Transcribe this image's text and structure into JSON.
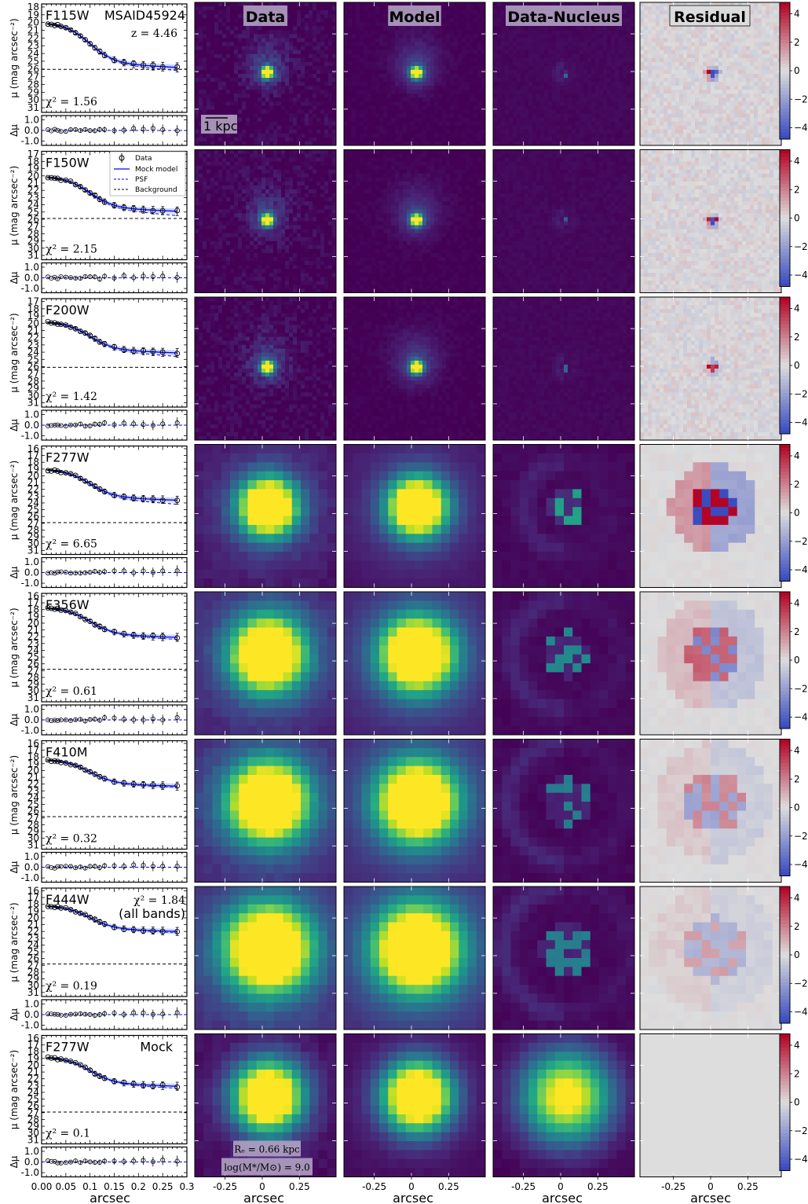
{
  "figure": {
    "column_titles": [
      "Data",
      "Model",
      "Data-Nucleus",
      "Residual"
    ],
    "profile_ylabel": "μ (mag arcsec⁻²)",
    "residual_ylabel": "Δμ",
    "xlabel": "arcsec",
    "source_id": "MSAID45924",
    "redshift": "z = 4.46",
    "all_bands_chi2_line1": "χ² = 1.84",
    "all_bands_chi2_line2": "(all bands)",
    "scalebar_label": "1 kpc",
    "mock_label": "Mock",
    "mock_re": "Rₑ = 0.66 kpc",
    "mock_mass": "log(M*/M⊙) = 9.0",
    "legend": [
      "Data",
      "Mock model",
      "PSF",
      "Background"
    ]
  },
  "chart_data": {
    "type": "line",
    "profile_x_ticks": [
      "0.00",
      "0.05",
      "0.1",
      "0.15",
      "0.2",
      "0.25",
      "0.3"
    ],
    "image_x_ticks": [
      "-0.25",
      "0",
      "0.25"
    ],
    "resid_y_ticks": [
      "1.0",
      "0.0",
      "-1.0"
    ],
    "colorbar_ticks": [
      "4",
      "2",
      "0",
      "−2",
      "−4"
    ],
    "colorbar_range": [
      -4.8,
      4.8
    ],
    "colors": {
      "model": "#0000ff",
      "psf": "#0000cc",
      "bg": "#000000",
      "viridis_low": "#440154",
      "viridis_high": "#fde725"
    },
    "x": [
      0.013,
      0.02,
      0.027,
      0.033,
      0.04,
      0.05,
      0.06,
      0.07,
      0.08,
      0.09,
      0.1,
      0.11,
      0.12,
      0.13,
      0.15,
      0.17,
      0.19,
      0.21,
      0.23,
      0.25,
      0.28
    ],
    "panels": [
      {
        "band": "F115W",
        "chi2": "χ² = 1.56",
        "y_ticks": [
          "18",
          "19",
          "20",
          "21",
          "22",
          "23",
          "24",
          "25",
          "26",
          "27",
          "28",
          "29",
          "30",
          "31"
        ],
        "y_range": [
          17.6,
          31.6
        ],
        "y_first": 20.05,
        "y_last": 25.8,
        "background": 26.05,
        "psf_end": 26.2,
        "bright_scale": 0.6,
        "halo": 0.55,
        "nucleus_strength": 0.35,
        "residual_strength": 1.0
      },
      {
        "band": "F150W",
        "chi2": "χ² = 2.15",
        "y_ticks": [
          "17",
          "18",
          "19",
          "20",
          "21",
          "22",
          "23",
          "24",
          "25",
          "26",
          "27",
          "28",
          "29",
          "30",
          "31"
        ],
        "y_range": [
          16.6,
          31.6
        ],
        "y_first": 20.1,
        "y_last": 24.9,
        "background": 25.9,
        "psf_end": 25.5,
        "bright_scale": 0.6,
        "halo": 0.5,
        "nucleus_strength": 0.3,
        "residual_strength": 1.0
      },
      {
        "band": "F200W",
        "chi2": "χ² = 1.42",
        "y_ticks": [
          "17",
          "18",
          "19",
          "20",
          "21",
          "22",
          "23",
          "24",
          "25",
          "26",
          "27",
          "28",
          "29",
          "30",
          "31"
        ],
        "y_range": [
          16.6,
          31.6
        ],
        "y_first": 19.8,
        "y_last": 24.1,
        "background": 26.1,
        "psf_end": 24.6,
        "bright_scale": 0.65,
        "halo": 0.5,
        "nucleus_strength": 0.3,
        "residual_strength": 0.9
      },
      {
        "band": "F277W",
        "chi2": "χ² = 6.65",
        "y_ticks": [
          "16",
          "17",
          "18",
          "19",
          "20",
          "21",
          "22",
          "23",
          "24",
          "25",
          "26",
          "27",
          "28",
          "29",
          "30",
          "31"
        ],
        "y_range": [
          15.6,
          31.6
        ],
        "y_first": 19.05,
        "y_last": 23.6,
        "background": 26.9,
        "psf_end": 24.2,
        "bright_scale": 1.0,
        "halo": 0.6,
        "nucleus_strength": 0.55,
        "residual_strength": 1.3
      },
      {
        "band": "F356W",
        "chi2": "χ² = 0.61",
        "y_ticks": [
          "16",
          "17",
          "18",
          "19",
          "20",
          "21",
          "22",
          "23",
          "24",
          "25",
          "26",
          "27",
          "28",
          "29",
          "30",
          "31"
        ],
        "y_range": [
          15.6,
          31.6
        ],
        "y_first": 17.7,
        "y_last": 22.1,
        "background": 26.8,
        "psf_end": 22.4,
        "bright_scale": 1.25,
        "halo": 0.75,
        "nucleus_strength": 0.45,
        "residual_strength": 0.6
      },
      {
        "band": "F410M",
        "chi2": "χ² = 0.32",
        "y_ticks": [
          "16",
          "17",
          "18",
          "19",
          "20",
          "21",
          "22",
          "23",
          "24",
          "25",
          "26",
          "27",
          "28",
          "29",
          "30",
          "31"
        ],
        "y_range": [
          15.6,
          31.6
        ],
        "y_first": 18.4,
        "y_last": 22.3,
        "background": 26.8,
        "psf_end": 22.5,
        "bright_scale": 1.35,
        "halo": 0.8,
        "nucleus_strength": 0.4,
        "residual_strength": 0.4
      },
      {
        "band": "F444W",
        "chi2": "χ² = 0.19",
        "y_ticks": [
          "16",
          "17",
          "18",
          "19",
          "20",
          "21",
          "22",
          "23",
          "24",
          "25",
          "26",
          "27",
          "28",
          "29",
          "30",
          "31"
        ],
        "y_range": [
          15.6,
          31.6
        ],
        "y_first": 18.2,
        "y_last": 22.0,
        "background": 26.8,
        "psf_end": 22.2,
        "bright_scale": 1.45,
        "halo": 0.85,
        "nucleus_strength": 0.4,
        "residual_strength": 0.3
      },
      {
        "band": "F277W",
        "chi2": "χ² = 0.1",
        "y_ticks": [
          "16",
          "17",
          "18",
          "19",
          "20",
          "21",
          "22",
          "23",
          "24",
          "25",
          "26",
          "27",
          "28",
          "29",
          "30",
          "31"
        ],
        "y_range": [
          15.6,
          31.6
        ],
        "y_first": 18.8,
        "y_last": 23.1,
        "background": 26.9,
        "psf_end": 23.4,
        "bright_scale": 1.2,
        "halo": 0.25,
        "nucleus_strength": 1.0,
        "residual_strength": 0.0
      }
    ]
  }
}
